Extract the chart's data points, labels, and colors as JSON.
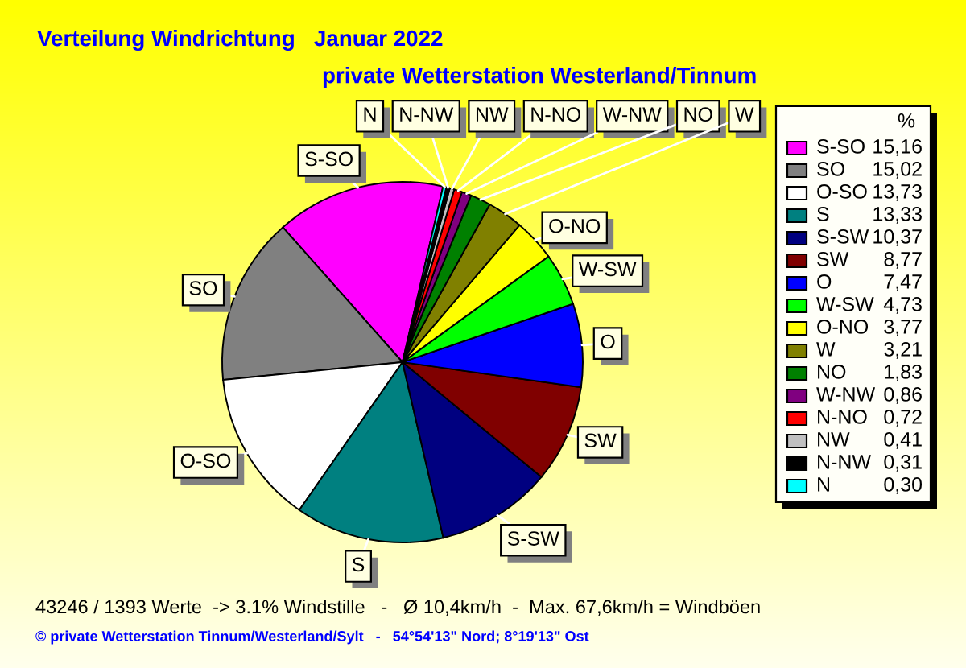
{
  "chart_data": {
    "type": "pie",
    "title": "Verteilung Windrichtung   Januar 2022",
    "subtitle": "private Wetterstation Westerland/Tinnum",
    "categories": [
      "S-SO",
      "SO",
      "O-SO",
      "S",
      "S-SW",
      "SW",
      "O",
      "W-SW",
      "O-NO",
      "W",
      "NO",
      "W-NW",
      "N-NO",
      "NW",
      "N-NW",
      "N"
    ],
    "values": [
      15.16,
      15.02,
      13.73,
      13.33,
      10.37,
      8.77,
      7.47,
      4.73,
      3.77,
      3.21,
      1.83,
      0.86,
      0.72,
      0.41,
      0.31,
      0.3
    ],
    "colors": [
      "#ff00ff",
      "#808080",
      "#ffffff",
      "#008080",
      "#000080",
      "#800000",
      "#0000ff",
      "#00ff00",
      "#ffff00",
      "#808000",
      "#008000",
      "#800080",
      "#ff0000",
      "#c0c0c0",
      "#000000",
      "#00ffff"
    ],
    "value_labels": [
      "15,16",
      "15,02",
      "13,73",
      "13,33",
      "10,37",
      "8,77",
      "7,47",
      "4,73",
      "3,77",
      "3,21",
      "1,83",
      "0,86",
      "0,72",
      "0,41",
      "0,31",
      "0,30"
    ],
    "legend_title": "%",
    "legend": "right",
    "annotations": [
      "43246 / 1393 Werte  -> 3.1% Windstille   -   Ø 10,4km/h  -  Max. 67,6km/h = Windböen",
      "© private Wetterstation Tinnum/Westerland/Sylt   -   54°54'13\" Nord; 8°19'13\" Ost"
    ]
  }
}
